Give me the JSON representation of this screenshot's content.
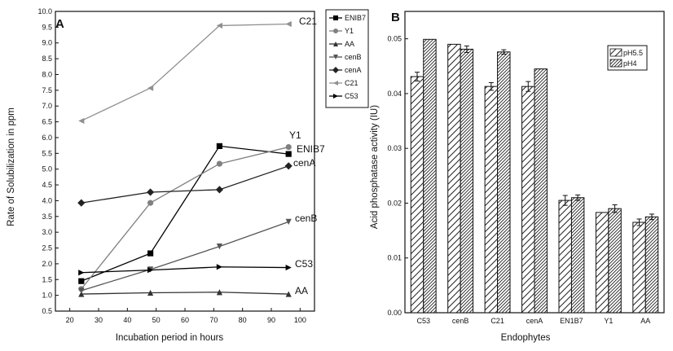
{
  "chart_data": [
    {
      "type": "line",
      "panel_label": "A",
      "xlabel": "Incubation period in hours",
      "ylabel": "Rate of Solubilization in ppm",
      "xlim": [
        15,
        105
      ],
      "ylim": [
        0.5,
        10.0
      ],
      "xticks": [
        "20",
        "30",
        "40",
        "50",
        "60",
        "70",
        "80",
        "90",
        "100"
      ],
      "yticks": [
        "0.5",
        "1.0",
        "1.5",
        "2.0",
        "2.5",
        "3.0",
        "3.5",
        "4.0",
        "4.5",
        "5.0",
        "5.5",
        "6.0",
        "6.5",
        "7.0",
        "7.5",
        "8.0",
        "8.5",
        "9.0",
        "9.5",
        "10.0"
      ],
      "x": [
        24,
        48,
        72,
        96
      ],
      "legend_position": "right",
      "series": [
        {
          "name": "ENIB7",
          "marker": "square",
          "color": "#000000",
          "values": [
            1.45,
            2.33,
            5.73,
            5.48
          ],
          "end_label": "ENIB7"
        },
        {
          "name": "Y1",
          "marker": "circle",
          "color": "#808080",
          "values": [
            1.2,
            3.93,
            5.17,
            5.7
          ],
          "end_label": "Y1"
        },
        {
          "name": "AA",
          "marker": "triangle-up",
          "color": "#333333",
          "values": [
            1.04,
            1.08,
            1.1,
            1.04
          ],
          "end_label": "AA"
        },
        {
          "name": "cenB",
          "marker": "triangle-down",
          "color": "#555555",
          "values": [
            1.15,
            1.82,
            2.55,
            3.33
          ],
          "end_label": "cenB"
        },
        {
          "name": "cenA",
          "marker": "diamond",
          "color": "#222222",
          "values": [
            3.93,
            4.27,
            4.35,
            5.1
          ],
          "end_label": "cenA"
        },
        {
          "name": "C21",
          "marker": "triangle-left",
          "color": "#909090",
          "values": [
            6.53,
            7.57,
            9.55,
            9.6
          ],
          "end_label": "C21"
        },
        {
          "name": "C53",
          "marker": "triangle-right",
          "color": "#000000",
          "values": [
            1.72,
            1.8,
            1.9,
            1.88
          ],
          "end_label": "C53"
        }
      ]
    },
    {
      "type": "bar",
      "panel_label": "B",
      "xlabel": "Endophytes",
      "ylabel": "Acid phosphatase activity (IU)",
      "ylim": [
        0,
        0.055
      ],
      "yticks": [
        "0.00",
        "0.01",
        "0.02",
        "0.03",
        "0.04",
        "0.05"
      ],
      "categories": [
        "C53",
        "cenB",
        "C21",
        "cenA",
        "EN1B7",
        "Y1",
        "AA"
      ],
      "legend_position": "top-right",
      "series": [
        {
          "name": "pH5.5",
          "pattern": "diagonal",
          "values": [
            0.0431,
            0.049,
            0.0413,
            0.0413,
            0.0205,
            0.0183,
            0.0165
          ],
          "errors": [
            0.0008,
            0.0,
            0.0007,
            0.0009,
            0.0009,
            0.0,
            0.0006
          ]
        },
        {
          "name": "pH4",
          "pattern": "dense-diagonal",
          "values": [
            0.0499,
            0.0481,
            0.0476,
            0.0445,
            0.021,
            0.019,
            0.0175
          ],
          "errors": [
            0.0,
            0.0006,
            0.0004,
            0.0,
            0.0005,
            0.0007,
            0.0005
          ]
        }
      ]
    }
  ]
}
